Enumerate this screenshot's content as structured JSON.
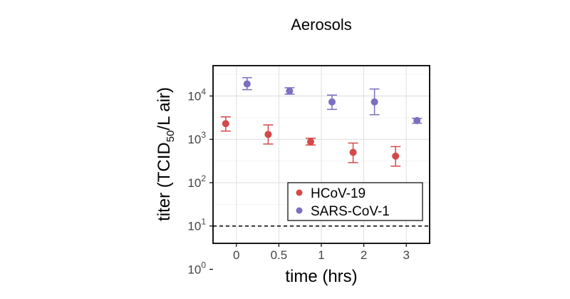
{
  "chart_data": {
    "type": "scatter",
    "title": "Aerosols",
    "xlabel": "time (hrs)",
    "ylabel": {
      "prefix": "titer (TCID",
      "subscript": "50",
      "suffix": "/L air)"
    },
    "x_categories": [
      "0",
      "0.5",
      "1",
      "2",
      "3"
    ],
    "y_scale": "log10",
    "y_range": [
      0.6,
      4.7
    ],
    "y_ticks": [
      {
        "value": 1,
        "base": "10",
        "exp": "0"
      },
      {
        "value": 10,
        "base": "10",
        "exp": "1"
      },
      {
        "value": 100,
        "base": "10",
        "exp": "2"
      },
      {
        "value": 1000,
        "base": "10",
        "exp": "3"
      },
      {
        "value": 10000,
        "base": "10",
        "exp": "4"
      }
    ],
    "grid": true,
    "reference_line": {
      "value": 10,
      "style": "dashed"
    },
    "legend_position": "bottom-right",
    "series": [
      {
        "name": "HCoV-19",
        "color": "#d34949",
        "points": [
          {
            "x": "0",
            "y": 2300,
            "low": 1550,
            "high": 3300
          },
          {
            "x": "0.5",
            "y": 1300,
            "low": 780,
            "high": 2150
          },
          {
            "x": "1",
            "y": 880,
            "low": 740,
            "high": 1060
          },
          {
            "x": "2",
            "y": 500,
            "low": 290,
            "high": 820
          },
          {
            "x": "3",
            "y": 410,
            "low": 240,
            "high": 680
          }
        ]
      },
      {
        "name": "SARS-CoV-1",
        "color": "#7a6fc0",
        "points": [
          {
            "x": "0",
            "y": 19000,
            "low": 14000,
            "high": 26500
          },
          {
            "x": "0.5",
            "y": 13000,
            "low": 11000,
            "high": 15500
          },
          {
            "x": "1",
            "y": 7300,
            "low": 4900,
            "high": 10500
          },
          {
            "x": "2",
            "y": 7300,
            "low": 3700,
            "high": 14500
          },
          {
            "x": "3",
            "y": 2700,
            "low": 2350,
            "high": 3050
          }
        ]
      }
    ]
  }
}
